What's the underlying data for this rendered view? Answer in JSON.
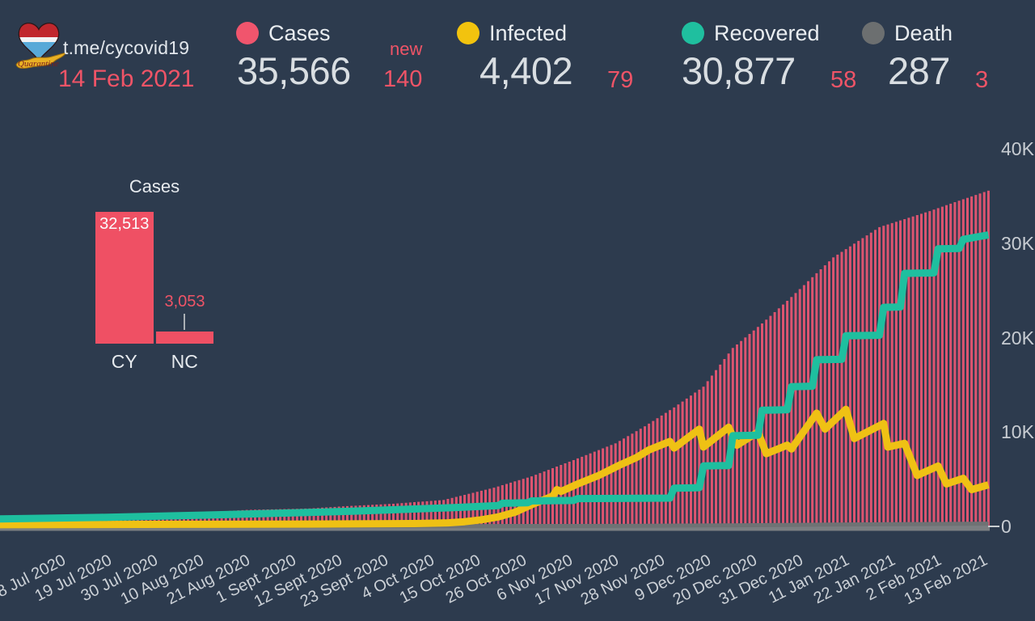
{
  "header": {
    "channel": "t.me/cycovid19",
    "date": "14 Feb 2021",
    "logo": {
      "icon": "heart-flag-quarantine-logo",
      "text": "Quarantine"
    },
    "stats": [
      {
        "label": "Cases",
        "value": "35,566",
        "delta_prefix": "new",
        "delta": "140",
        "color": "#f0556d"
      },
      {
        "label": "Infected",
        "value": "4,402",
        "delta": "79",
        "color": "#f2c30e"
      },
      {
        "label": "Recovered",
        "value": "30,877",
        "delta": "58",
        "color": "#1fbf9f"
      },
      {
        "label": "Death",
        "value": "287",
        "delta": "3",
        "color": "#6c6f70"
      }
    ]
  },
  "colors": {
    "background": "#2d3b4e",
    "accent_pink": "#ef5467",
    "bar_pink": "#dd5470",
    "yellow": "#efc114",
    "teal": "#1ebf9f",
    "gray": "#7b7f82",
    "text_light": "#e9edf0"
  },
  "chart_data": [
    {
      "id": "cases_by_region",
      "type": "bar",
      "title": "Cases",
      "categories": [
        "CY",
        "NC"
      ],
      "values": [
        32513,
        3053
      ],
      "value_labels": [
        "32,513",
        "3,053"
      ],
      "bar_color": "#ef5064",
      "legend_position": "none",
      "grid": false
    },
    {
      "id": "covid_timeline",
      "type": "mixed",
      "grid": false,
      "legend_position": "top",
      "ylim": [
        0,
        40000
      ],
      "y_tick_values": [
        0,
        10000,
        20000,
        30000,
        40000
      ],
      "y_tick_labels": [
        "0",
        "10K",
        "20K",
        "30K",
        "40K"
      ],
      "x_tick_days": [
        0,
        11,
        22,
        33,
        44,
        55,
        66,
        77,
        88,
        99,
        110,
        121,
        132,
        143,
        154,
        165,
        176,
        187,
        198,
        209,
        220
      ],
      "x_tick_labels": [
        "8 Jul 2020",
        "19 Jul 2020",
        "30 Jul 2020",
        "10 Aug 2020",
        "21 Aug 2020",
        "1 Sept 2020",
        "12 Sept 2020",
        "23 Sept 2020",
        "4 Oct 2020",
        "15 Oct 2020",
        "26 Oct 2020",
        "6 Nov 2020",
        "17 Nov 2020",
        "28 Nov 2020",
        "9 Dec 2020",
        "20 Dec 2020",
        "31 Dec 2020",
        "11 Jan 2021",
        "22 Jan 2021",
        "2 Feb 2021",
        "13 Feb 2021"
      ],
      "x_range_days": [
        -14,
        222
      ],
      "series": [
        {
          "name": "Cases",
          "type": "bar",
          "color": "#dd5470",
          "points": [
            [
              -14,
              900
            ],
            [
              0,
              1000
            ],
            [
              15,
              1100
            ],
            [
              30,
              1350
            ],
            [
              45,
              1750
            ],
            [
              60,
              1900
            ],
            [
              69,
              2150
            ],
            [
              80,
              2400
            ],
            [
              92,
              2800
            ],
            [
              104,
              4100
            ],
            [
              113,
              5300
            ],
            [
              124,
              7200
            ],
            [
              133,
              8800
            ],
            [
              140,
              10600
            ],
            [
              147,
              12600
            ],
            [
              154,
              14800
            ],
            [
              161,
              18900
            ],
            [
              168,
              21500
            ],
            [
              175,
              24300
            ],
            [
              185,
              28500
            ],
            [
              196,
              31700
            ],
            [
              208,
              33400
            ],
            [
              215,
              34500
            ],
            [
              222,
              35566
            ]
          ]
        },
        {
          "name": "Death",
          "type": "line",
          "color": "#6f7274",
          "points": [
            [
              -14,
              15
            ],
            [
              60,
              25
            ],
            [
              100,
              30
            ],
            [
              120,
              40
            ],
            [
              140,
              60
            ],
            [
              160,
              110
            ],
            [
              180,
              170
            ],
            [
              200,
              230
            ],
            [
              222,
              287
            ]
          ]
        },
        {
          "name": "Infected",
          "type": "line",
          "color": "#efc114",
          "points": [
            [
              -14,
              180
            ],
            [
              30,
              220
            ],
            [
              60,
              250
            ],
            [
              85,
              300
            ],
            [
              93,
              380
            ],
            [
              97,
              500
            ],
            [
              101,
              700
            ],
            [
              105,
              1000
            ],
            [
              109,
              1500
            ],
            [
              113,
              2300
            ],
            [
              118,
              3200
            ],
            [
              119,
              3900
            ],
            [
              120,
              3700
            ],
            [
              124,
              4500
            ],
            [
              129,
              5400
            ],
            [
              134,
              6500
            ],
            [
              138,
              7300
            ],
            [
              141,
              8100
            ],
            [
              146,
              9000
            ],
            [
              147,
              8300
            ],
            [
              153,
              10300
            ],
            [
              154,
              8400
            ],
            [
              160,
              10500
            ],
            [
              162,
              8600
            ],
            [
              167,
              10000
            ],
            [
              169,
              7700
            ],
            [
              174,
              8600
            ],
            [
              175,
              8200
            ],
            [
              181,
              12000
            ],
            [
              183,
              10300
            ],
            [
              188,
              12400
            ],
            [
              190,
              9300
            ],
            [
              197,
              10900
            ],
            [
              198,
              8400
            ],
            [
              202,
              8800
            ],
            [
              205,
              5400
            ],
            [
              210,
              6400
            ],
            [
              212,
              4500
            ],
            [
              216,
              5100
            ],
            [
              218,
              3900
            ],
            [
              222,
              4402
            ]
          ]
        },
        {
          "name": "Recovered",
          "type": "line",
          "color": "#1ebf9f",
          "points": [
            [
              -14,
              800
            ],
            [
              10,
              950
            ],
            [
              40,
              1250
            ],
            [
              70,
              1600
            ],
            [
              95,
              2000
            ],
            [
              105,
              2200
            ],
            [
              106,
              2450
            ],
            [
              112,
              2500
            ],
            [
              113,
              2700
            ],
            [
              123,
              2750
            ],
            [
              124,
              2950
            ],
            [
              146,
              3000
            ],
            [
              147,
              4050
            ],
            [
              153,
              4100
            ],
            [
              154,
              6400
            ],
            [
              160,
              6450
            ],
            [
              161,
              9600
            ],
            [
              167,
              9650
            ],
            [
              168,
              12300
            ],
            [
              174,
              12350
            ],
            [
              175,
              14800
            ],
            [
              180,
              14850
            ],
            [
              181,
              17650
            ],
            [
              187,
              17700
            ],
            [
              188,
              20200
            ],
            [
              196,
              20250
            ],
            [
              197,
              23200
            ],
            [
              201,
              23250
            ],
            [
              202,
              26800
            ],
            [
              209,
              26850
            ],
            [
              210,
              29400
            ],
            [
              215,
              29450
            ],
            [
              216,
              30400
            ],
            [
              222,
              30877
            ]
          ]
        }
      ]
    }
  ]
}
